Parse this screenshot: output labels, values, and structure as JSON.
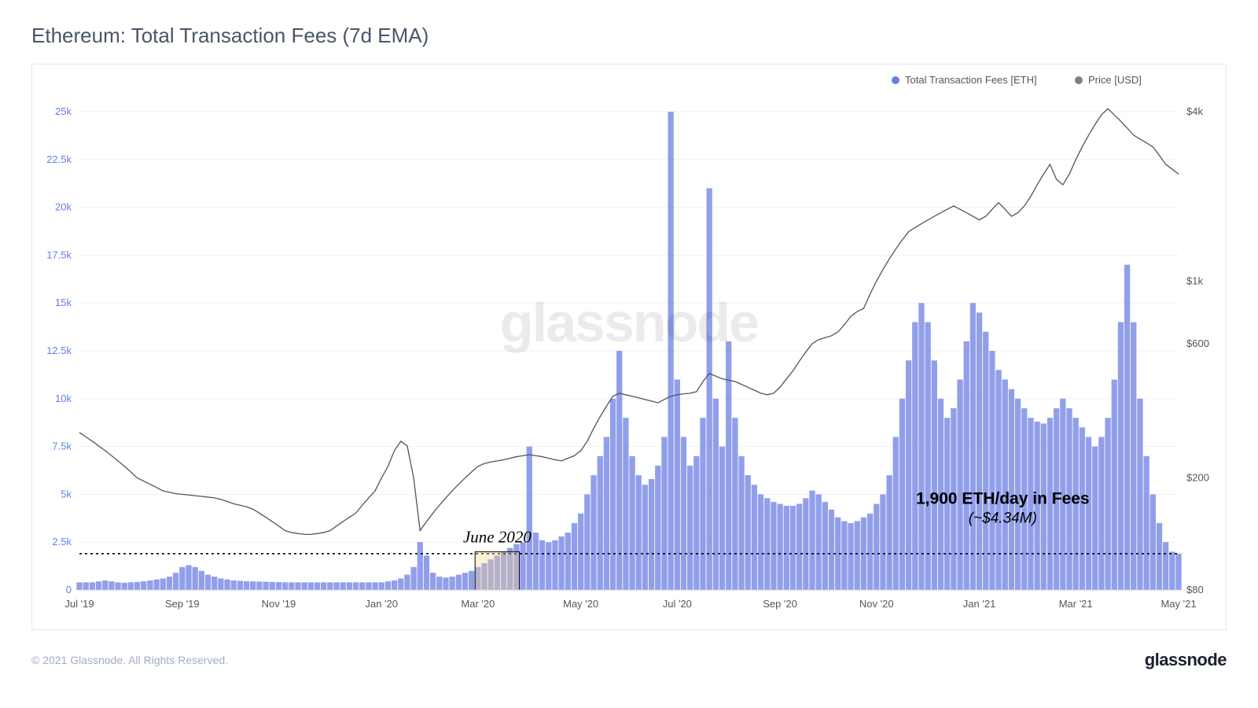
{
  "title": "Ethereum: Total Transaction Fees (7d EMA)",
  "footer_copyright": "© 2021 Glassnode. All Rights Reserved.",
  "footer_logo": "glassnode",
  "watermark": "glassnode",
  "legend": [
    {
      "label": "Total Transaction Fees [ETH]",
      "color": "#667eea",
      "marker": "circle"
    },
    {
      "label": "Price [USD]",
      "color": "#808080",
      "marker": "circle"
    }
  ],
  "annotations": {
    "june2020": {
      "text": "June 2020",
      "font_style": "italic",
      "font_size": 21,
      "color": "#000000"
    },
    "fees_line1": {
      "text": "1,900 ETH/day in Fees",
      "font_size": 21,
      "font_weight": "bold",
      "color": "#000000"
    },
    "fees_line2": {
      "text": "(~$4.34M)",
      "font_size": 19,
      "font_style": "italic",
      "color": "#000000"
    }
  },
  "chart": {
    "type": "bar+line",
    "background_color": "#ffffff",
    "grid_color": "#edf2f7",
    "bar_color": "#7e8ee8",
    "bar_opacity": 0.85,
    "line_color": "#555555",
    "line_width": 1.3,
    "dotted_line_color": "#000000",
    "highlight_box_fill": "#fbd38d",
    "highlight_box_fill_opacity": 0.35,
    "highlight_box_stroke": "#000000",
    "axis_left": {
      "label_color": "#667eea",
      "label_fontsize": 13,
      "scale": "linear",
      "min": 0,
      "max": 25000,
      "ticks": [
        0,
        2500,
        5000,
        7500,
        10000,
        12500,
        15000,
        17500,
        20000,
        22500,
        25000
      ],
      "tick_labels": [
        "0",
        "2.5k",
        "5k",
        "7.5k",
        "10k",
        "12.5k",
        "15k",
        "17.5k",
        "20k",
        "22.5k",
        "25k"
      ]
    },
    "axis_right": {
      "label_color": "#555555",
      "label_fontsize": 13,
      "scale": "log",
      "ticks": [
        80,
        200,
        600,
        1000,
        4000
      ],
      "tick_labels": [
        "$80",
        "$200",
        "$600",
        "$1k",
        "$4k"
      ]
    },
    "axis_x": {
      "label_color": "#555555",
      "label_fontsize": 13,
      "tick_labels": [
        "Jul '19",
        "Sep '19",
        "Nov '19",
        "Jan '20",
        "Mar '20",
        "May '20",
        "Jul '20",
        "Sep '20",
        "Nov '20",
        "Jan '21",
        "Mar '21",
        "May '21"
      ]
    },
    "dotted_ref_value": 1900,
    "highlight_range_bars": [
      62,
      68
    ],
    "bars": [
      400,
      400,
      400,
      450,
      500,
      450,
      400,
      380,
      400,
      420,
      450,
      500,
      550,
      600,
      700,
      900,
      1200,
      1300,
      1200,
      1000,
      800,
      700,
      600,
      550,
      500,
      480,
      460,
      450,
      440,
      430,
      420,
      410,
      400,
      400,
      400,
      400,
      400,
      400,
      400,
      400,
      400,
      400,
      400,
      400,
      400,
      400,
      400,
      400,
      450,
      500,
      600,
      800,
      1200,
      2500,
      1800,
      900,
      700,
      650,
      700,
      800,
      900,
      1000,
      1200,
      1400,
      1600,
      1800,
      2000,
      2200,
      2400,
      2500,
      7500,
      3000,
      2600,
      2500,
      2600,
      2800,
      3000,
      3500,
      4000,
      5000,
      6000,
      7000,
      8000,
      10000,
      12500,
      9000,
      7000,
      6000,
      5500,
      5800,
      6500,
      8000,
      25000,
      11000,
      8000,
      6500,
      7000,
      9000,
      21000,
      10000,
      7500,
      13000,
      9000,
      7000,
      6000,
      5500,
      5000,
      4800,
      4600,
      4500,
      4400,
      4400,
      4500,
      4800,
      5200,
      5000,
      4600,
      4200,
      3800,
      3600,
      3500,
      3600,
      3800,
      4000,
      4500,
      5000,
      6000,
      8000,
      10000,
      12000,
      14000,
      15000,
      14000,
      12000,
      10000,
      9000,
      9500,
      11000,
      13000,
      15000,
      14500,
      13500,
      12500,
      11500,
      11000,
      10500,
      10000,
      9500,
      9000,
      8800,
      8700,
      9000,
      9500,
      10000,
      9500,
      9000,
      8500,
      8000,
      7500,
      8000,
      9000,
      11000,
      14000,
      17000,
      14000,
      10000,
      7000,
      5000,
      3500,
      2500,
      2000,
      1900
    ],
    "price_line": [
      290,
      280,
      270,
      260,
      250,
      240,
      230,
      220,
      210,
      200,
      195,
      190,
      185,
      180,
      178,
      176,
      175,
      174,
      173,
      172,
      171,
      170,
      168,
      165,
      162,
      160,
      158,
      155,
      150,
      145,
      140,
      135,
      130,
      128,
      127,
      126,
      126,
      127,
      128,
      130,
      135,
      140,
      145,
      150,
      160,
      170,
      180,
      200,
      220,
      250,
      270,
      260,
      200,
      130,
      140,
      150,
      160,
      170,
      180,
      190,
      200,
      210,
      220,
      225,
      228,
      230,
      232,
      235,
      238,
      240,
      242,
      240,
      238,
      235,
      232,
      230,
      235,
      240,
      250,
      270,
      300,
      330,
      360,
      390,
      400,
      395,
      390,
      385,
      380,
      375,
      370,
      380,
      390,
      395,
      398,
      400,
      405,
      440,
      470,
      460,
      450,
      445,
      440,
      430,
      420,
      410,
      400,
      395,
      400,
      420,
      450,
      480,
      520,
      560,
      600,
      620,
      630,
      640,
      660,
      700,
      750,
      780,
      800,
      900,
      1000,
      1100,
      1200,
      1300,
      1400,
      1500,
      1550,
      1600,
      1650,
      1700,
      1750,
      1800,
      1850,
      1800,
      1750,
      1700,
      1650,
      1700,
      1800,
      1900,
      1800,
      1700,
      1750,
      1850,
      2000,
      2200,
      2400,
      2600,
      2300,
      2200,
      2400,
      2700,
      3000,
      3300,
      3600,
      3900,
      4100,
      3900,
      3700,
      3500,
      3300,
      3200,
      3100,
      3000,
      2800,
      2600,
      2500,
      2400
    ]
  }
}
